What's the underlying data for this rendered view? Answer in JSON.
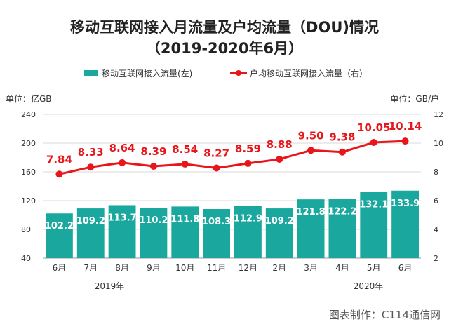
{
  "chart_data": {
    "type": "bar+line",
    "title": "移动互联网接入月流量及户均流量（DOU)情况",
    "subtitle": "（2019-2020年6月）",
    "categories": [
      "6月",
      "7月",
      "8月",
      "9月",
      "10月",
      "11月",
      "12月",
      "2月",
      "3月",
      "4月",
      "5月",
      "6月"
    ],
    "year_labels": [
      "2019年",
      "2020年"
    ],
    "series": [
      {
        "name": "移动互联网接入流量(左)",
        "type": "bar",
        "axis": "left",
        "color": "#1aa89e",
        "values": [
          102.2,
          109.2,
          113.7,
          110.2,
          111.8,
          108.3,
          112.9,
          109.2,
          121.8,
          122.2,
          132.1,
          133.9
        ]
      },
      {
        "name": "户均移动互联网接入流量（右）",
        "type": "line",
        "axis": "right",
        "color": "#e8161b",
        "values": [
          7.84,
          8.33,
          8.64,
          8.39,
          8.54,
          8.27,
          8.59,
          8.88,
          9.5,
          9.38,
          10.05,
          10.14
        ]
      }
    ],
    "left_axis": {
      "unit_label": "单位：亿GB",
      "ylim": [
        40,
        240
      ],
      "ticks": [
        240,
        200,
        160,
        120,
        80,
        40
      ]
    },
    "right_axis": {
      "unit_label": "单位：GB/户",
      "ylim": [
        2,
        12
      ],
      "ticks": [
        12,
        10,
        8,
        6,
        4,
        2
      ]
    },
    "legend_position": "top",
    "grid": true
  },
  "credit": "图表制作：C114通信网"
}
